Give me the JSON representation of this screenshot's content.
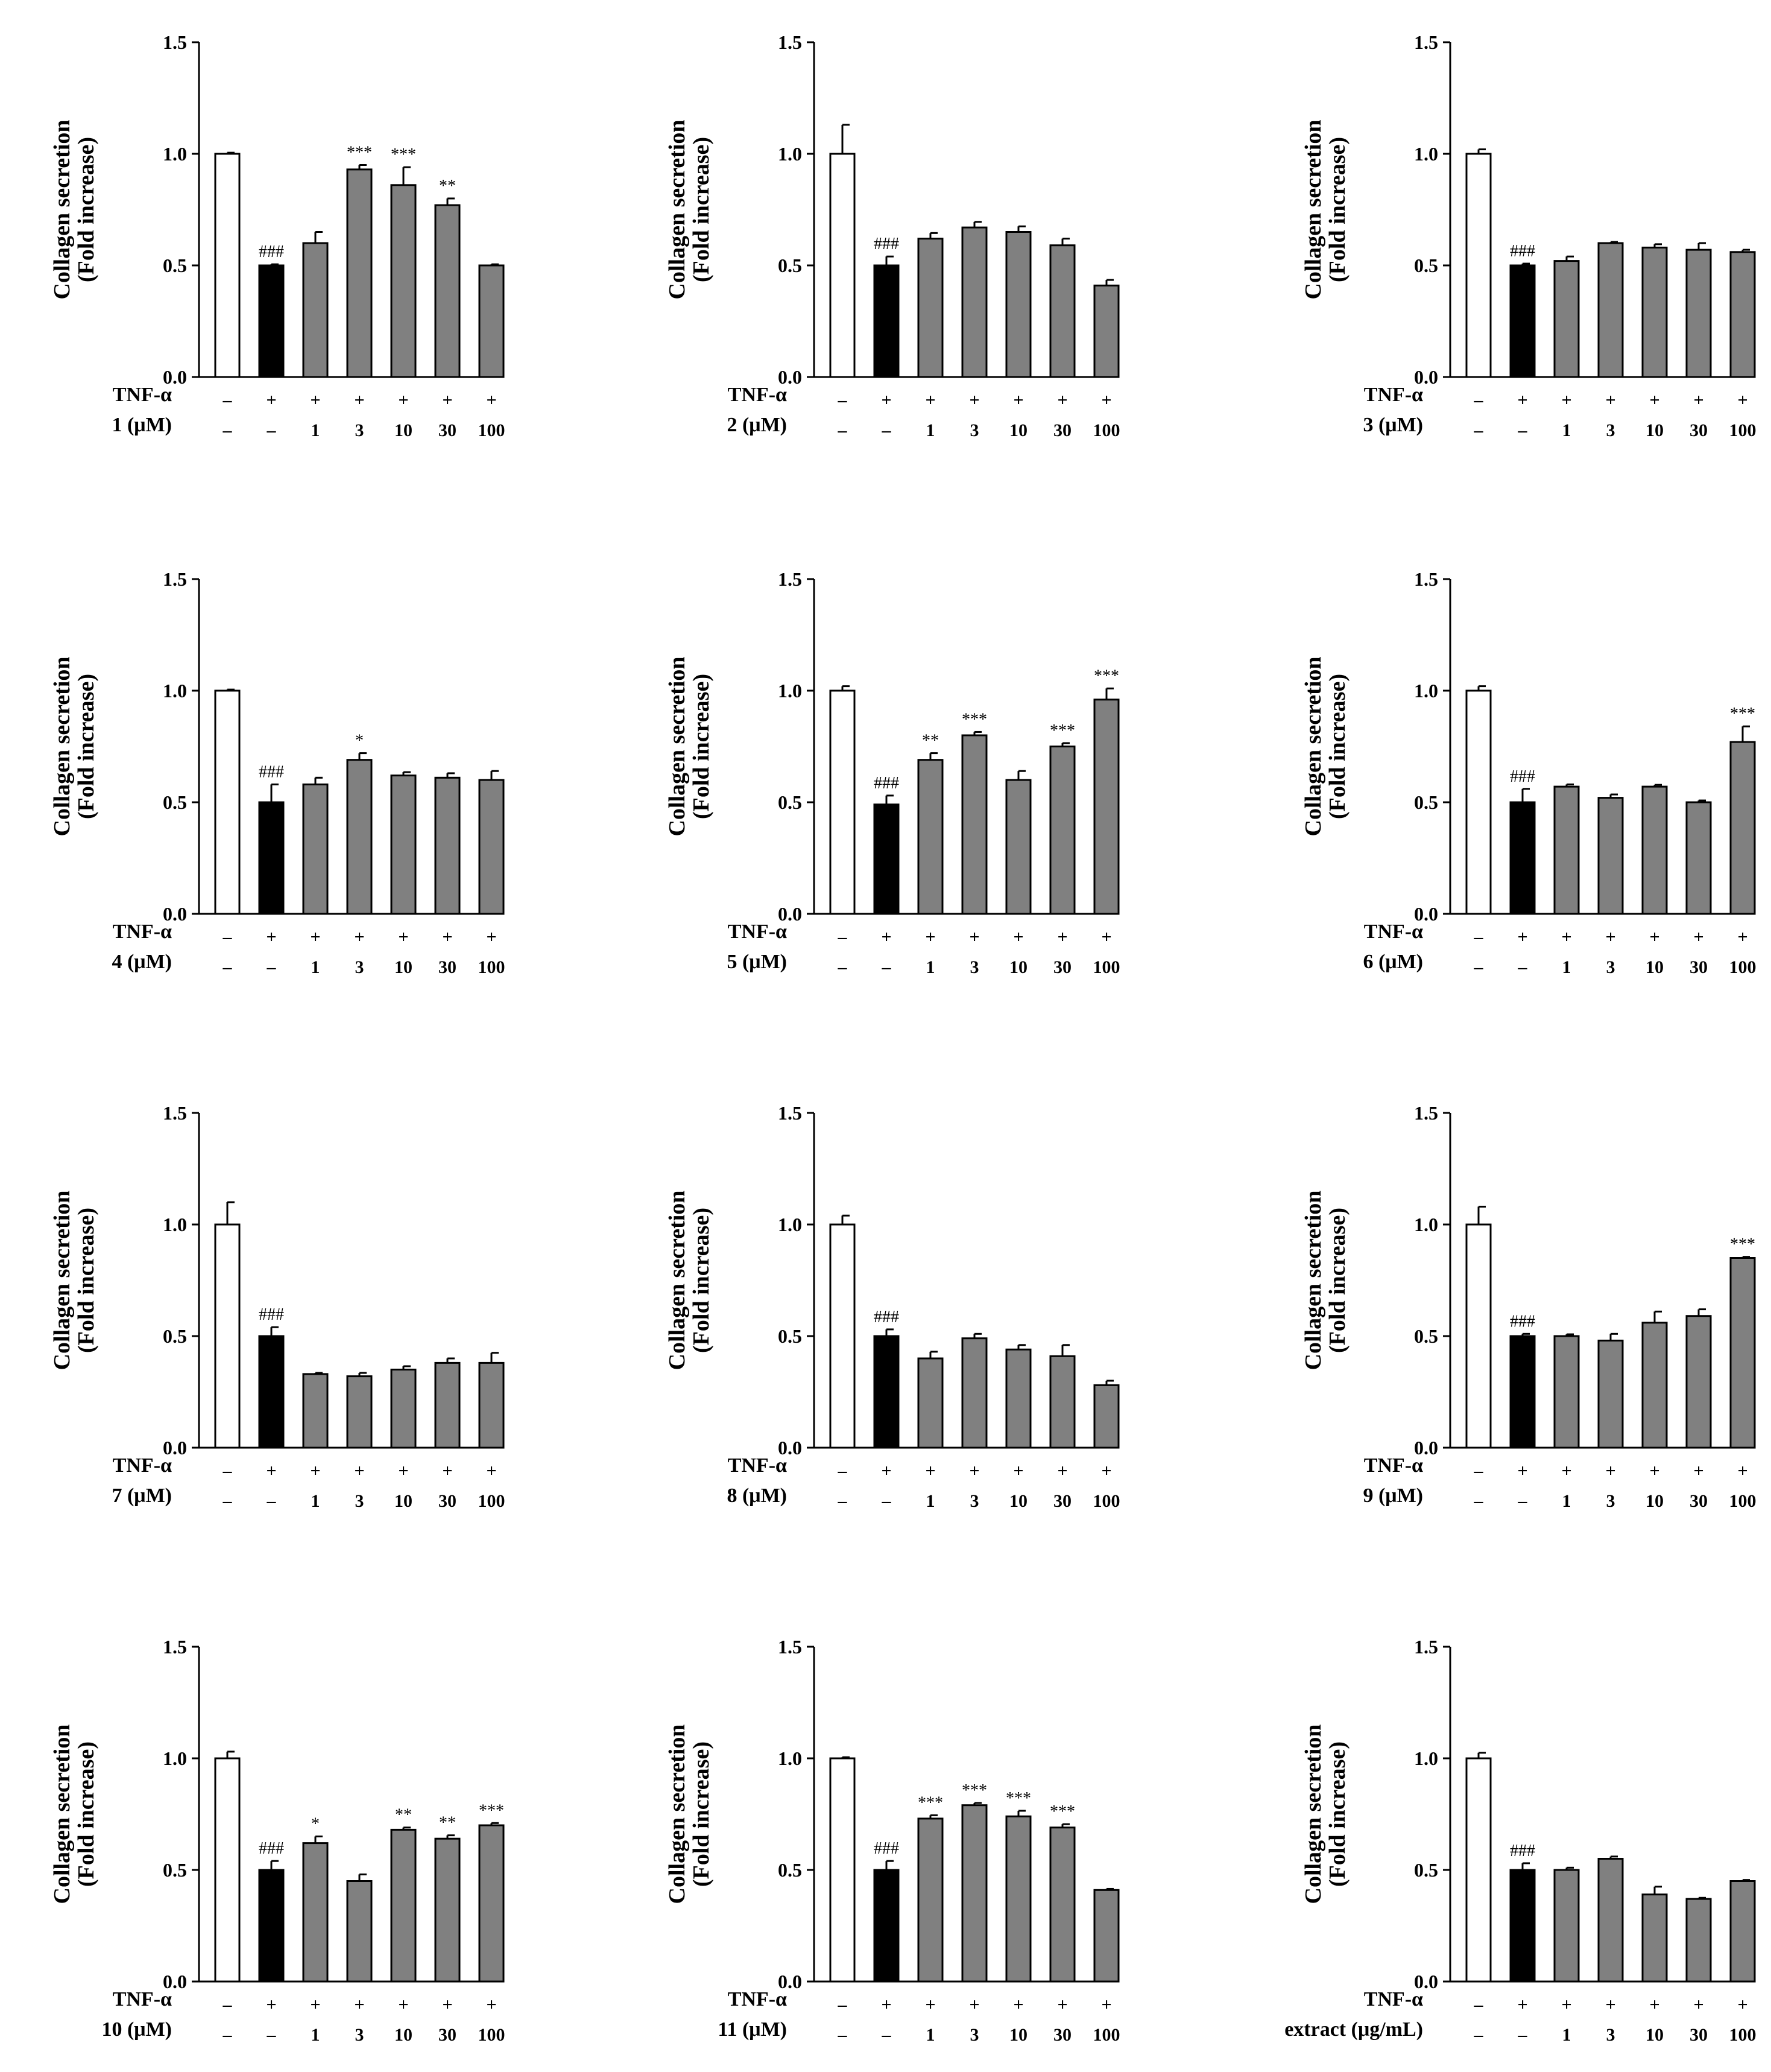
{
  "figure": {
    "ylabel_line1": "Collagen secretion",
    "ylabel_line2": "(Fold increase)",
    "tnf_label": "TNF-α",
    "tnf_row": [
      "–",
      "+",
      "+",
      "+",
      "+",
      "+",
      "+"
    ],
    "ylim": [
      0,
      1.5
    ],
    "yticks": [
      "0.0",
      "0.5",
      "1.0",
      "1.5"
    ],
    "colors": {
      "control": "#ffffff",
      "tnf": "#000000",
      "treated": "#808080",
      "axis": "#000000"
    }
  },
  "chart_data": [
    {
      "type": "bar",
      "panel": "1",
      "dose_label": "1 (μM)",
      "categories": [
        "–",
        "–",
        "1",
        "3",
        "10",
        "30",
        "100"
      ],
      "values": [
        1.0,
        0.5,
        0.6,
        0.93,
        0.86,
        0.77,
        0.5
      ],
      "errors": [
        0.005,
        0.005,
        0.05,
        0.02,
        0.08,
        0.03,
        0.005
      ],
      "annotations": [
        "",
        "###",
        "",
        "***",
        "***",
        "**",
        ""
      ]
    },
    {
      "type": "bar",
      "panel": "2",
      "dose_label": "2 (μM)",
      "categories": [
        "–",
        "–",
        "1",
        "3",
        "10",
        "30",
        "100"
      ],
      "values": [
        1.0,
        0.5,
        0.62,
        0.67,
        0.65,
        0.59,
        0.41
      ],
      "errors": [
        0.13,
        0.04,
        0.025,
        0.025,
        0.025,
        0.03,
        0.025
      ],
      "annotations": [
        "",
        "###",
        "",
        "",
        "",
        "",
        ""
      ]
    },
    {
      "type": "bar",
      "panel": "3",
      "dose_label": "3 (μM)",
      "categories": [
        "–",
        "–",
        "1",
        "3",
        "10",
        "30",
        "100"
      ],
      "values": [
        1.0,
        0.5,
        0.52,
        0.6,
        0.58,
        0.57,
        0.56
      ],
      "errors": [
        0.02,
        0.008,
        0.02,
        0.005,
        0.015,
        0.03,
        0.01
      ],
      "annotations": [
        "",
        "###",
        "",
        "",
        "",
        "",
        ""
      ]
    },
    {
      "type": "bar",
      "panel": "4",
      "dose_label": "4 (μM)",
      "categories": [
        "–",
        "–",
        "1",
        "3",
        "10",
        "30",
        "100"
      ],
      "values": [
        1.0,
        0.5,
        0.58,
        0.69,
        0.62,
        0.61,
        0.6
      ],
      "errors": [
        0.005,
        0.08,
        0.03,
        0.03,
        0.015,
        0.02,
        0.04
      ],
      "annotations": [
        "",
        "###",
        "",
        "*",
        "",
        "",
        ""
      ]
    },
    {
      "type": "bar",
      "panel": "5",
      "dose_label": "5 (μM)",
      "categories": [
        "–",
        "–",
        "1",
        "3",
        "10",
        "30",
        "100"
      ],
      "values": [
        1.0,
        0.49,
        0.69,
        0.8,
        0.6,
        0.75,
        0.96
      ],
      "errors": [
        0.02,
        0.04,
        0.03,
        0.015,
        0.04,
        0.015,
        0.05
      ],
      "annotations": [
        "",
        "###",
        "**",
        "***",
        "",
        "***",
        "***"
      ]
    },
    {
      "type": "bar",
      "panel": "6",
      "dose_label": "6 (μM)",
      "categories": [
        "–",
        "–",
        "1",
        "3",
        "10",
        "30",
        "100"
      ],
      "values": [
        1.0,
        0.5,
        0.57,
        0.52,
        0.57,
        0.5,
        0.77
      ],
      "errors": [
        0.02,
        0.06,
        0.01,
        0.015,
        0.008,
        0.008,
        0.07
      ],
      "annotations": [
        "",
        "###",
        "",
        "",
        "",
        "",
        "***"
      ]
    },
    {
      "type": "bar",
      "panel": "7",
      "dose_label": "7 (μM)",
      "categories": [
        "–",
        "–",
        "1",
        "3",
        "10",
        "30",
        "100"
      ],
      "values": [
        1.0,
        0.5,
        0.33,
        0.32,
        0.35,
        0.38,
        0.38
      ],
      "errors": [
        0.1,
        0.04,
        0.005,
        0.015,
        0.015,
        0.02,
        0.045
      ],
      "annotations": [
        "",
        "###",
        "",
        "",
        "",
        "",
        ""
      ]
    },
    {
      "type": "bar",
      "panel": "8",
      "dose_label": "8 (μM)",
      "categories": [
        "–",
        "–",
        "1",
        "3",
        "10",
        "30",
        "100"
      ],
      "values": [
        1.0,
        0.5,
        0.4,
        0.49,
        0.44,
        0.41,
        0.28
      ],
      "errors": [
        0.04,
        0.03,
        0.03,
        0.02,
        0.02,
        0.05,
        0.02
      ],
      "annotations": [
        "",
        "###",
        "",
        "",
        "",
        "",
        ""
      ]
    },
    {
      "type": "bar",
      "panel": "9",
      "dose_label": "9 (μM)",
      "categories": [
        "–",
        "–",
        "1",
        "3",
        "10",
        "30",
        "100"
      ],
      "values": [
        1.0,
        0.5,
        0.5,
        0.48,
        0.56,
        0.59,
        0.85
      ],
      "errors": [
        0.08,
        0.01,
        0.008,
        0.03,
        0.05,
        0.03,
        0.005
      ],
      "annotations": [
        "",
        "###",
        "",
        "",
        "",
        "",
        "***"
      ]
    },
    {
      "type": "bar",
      "panel": "10",
      "dose_label": "10 (μM)",
      "categories": [
        "–",
        "–",
        "1",
        "3",
        "10",
        "30",
        "100"
      ],
      "values": [
        1.0,
        0.5,
        0.62,
        0.45,
        0.68,
        0.64,
        0.7
      ],
      "errors": [
        0.03,
        0.04,
        0.03,
        0.03,
        0.01,
        0.015,
        0.01
      ],
      "annotations": [
        "",
        "###",
        "*",
        "",
        "**",
        "**",
        "***"
      ]
    },
    {
      "type": "bar",
      "panel": "11",
      "dose_label": "11 (μM)",
      "categories": [
        "–",
        "–",
        "1",
        "3",
        "10",
        "30",
        "100"
      ],
      "values": [
        1.0,
        0.5,
        0.73,
        0.79,
        0.74,
        0.69,
        0.41
      ],
      "errors": [
        0.005,
        0.04,
        0.015,
        0.01,
        0.025,
        0.015,
        0.005
      ],
      "annotations": [
        "",
        "###",
        "***",
        "***",
        "***",
        "***",
        ""
      ]
    },
    {
      "type": "bar",
      "panel": "extract",
      "dose_label": "extract (μg/mL)",
      "categories": [
        "–",
        "–",
        "1",
        "3",
        "10",
        "30",
        "100"
      ],
      "values": [
        1.0,
        0.5,
        0.5,
        0.55,
        0.39,
        0.37,
        0.45
      ],
      "errors": [
        0.025,
        0.03,
        0.01,
        0.01,
        0.035,
        0.005,
        0.005
      ],
      "annotations": [
        "",
        "###",
        "",
        "",
        "",
        "",
        ""
      ]
    }
  ]
}
